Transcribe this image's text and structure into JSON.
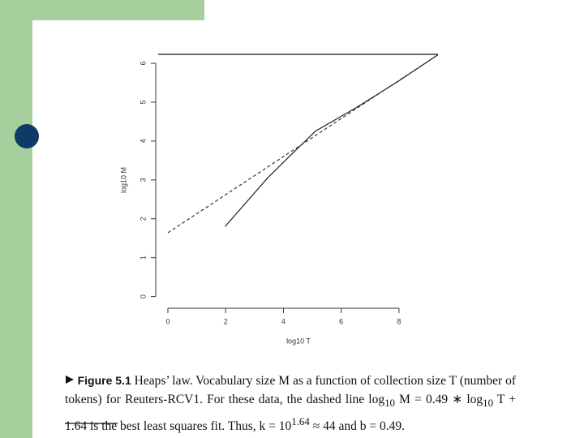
{
  "chart_data": {
    "type": "line",
    "x_label": "log10 T",
    "y_label": "log10 M",
    "xlim": [
      -0.35,
      9.35
    ],
    "ylim": [
      -0.3,
      6.23
    ],
    "xticks": [
      0,
      2,
      4,
      6,
      8
    ],
    "yticks": [
      0,
      1,
      2,
      3,
      4,
      5,
      6
    ],
    "series": [
      {
        "color": "#222222",
        "dash": false,
        "x": [
          1.98,
          3.45,
          4.2,
          5.1,
          6.5,
          8,
          9.35
        ],
        "values": [
          1.8,
          3.05,
          3.6,
          4.25,
          4.85,
          5.55,
          6.22
        ]
      },
      {
        "color": "#333333",
        "dash": true,
        "x": [
          0,
          9.35
        ],
        "values": [
          1.64,
          6.22
        ]
      }
    ]
  },
  "caption": {
    "segments": [
      "Figure 5.1",
      "  Heaps’ law.  Vocabulary size M as a function of collection size T (number of tokens) for Reuters-RCV1.  For these data, the dashed line log",
      "10",
      " M = 0.49 ∗ log",
      "10",
      " T + 1.64 is the best least squares fit. Thus, k = 10",
      "1.64",
      " ≈ 44 and b = 0.49."
    ]
  }
}
